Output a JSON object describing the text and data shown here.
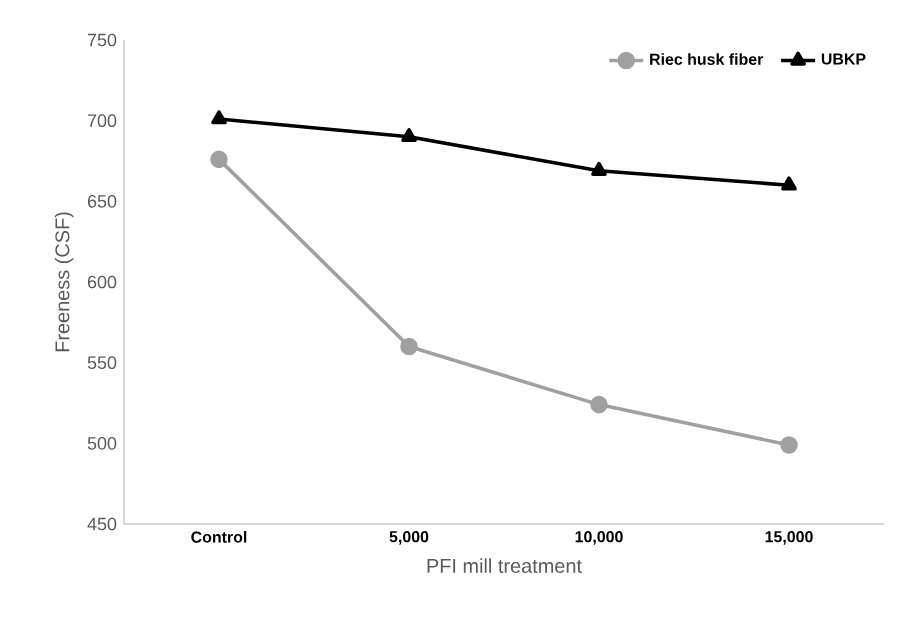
{
  "chart_data": {
    "type": "line",
    "xlabel": "PFI mill treatment",
    "ylabel": "Freeness (CSF)",
    "categories": [
      "Control",
      "5,000",
      "10,000",
      "15,000"
    ],
    "series": [
      {
        "name": "Riec husk fiber",
        "color": "#a0a0a0",
        "marker": "circle",
        "values": [
          676,
          560,
          524,
          499
        ]
      },
      {
        "name": "UBKP",
        "color": "#000000",
        "marker": "triangle",
        "values": [
          701,
          690,
          669,
          660
        ]
      }
    ],
    "ylim": [
      450,
      750
    ],
    "yticks": [
      450,
      500,
      550,
      600,
      650,
      700,
      750
    ],
    "grid": false,
    "legend": "top right"
  }
}
